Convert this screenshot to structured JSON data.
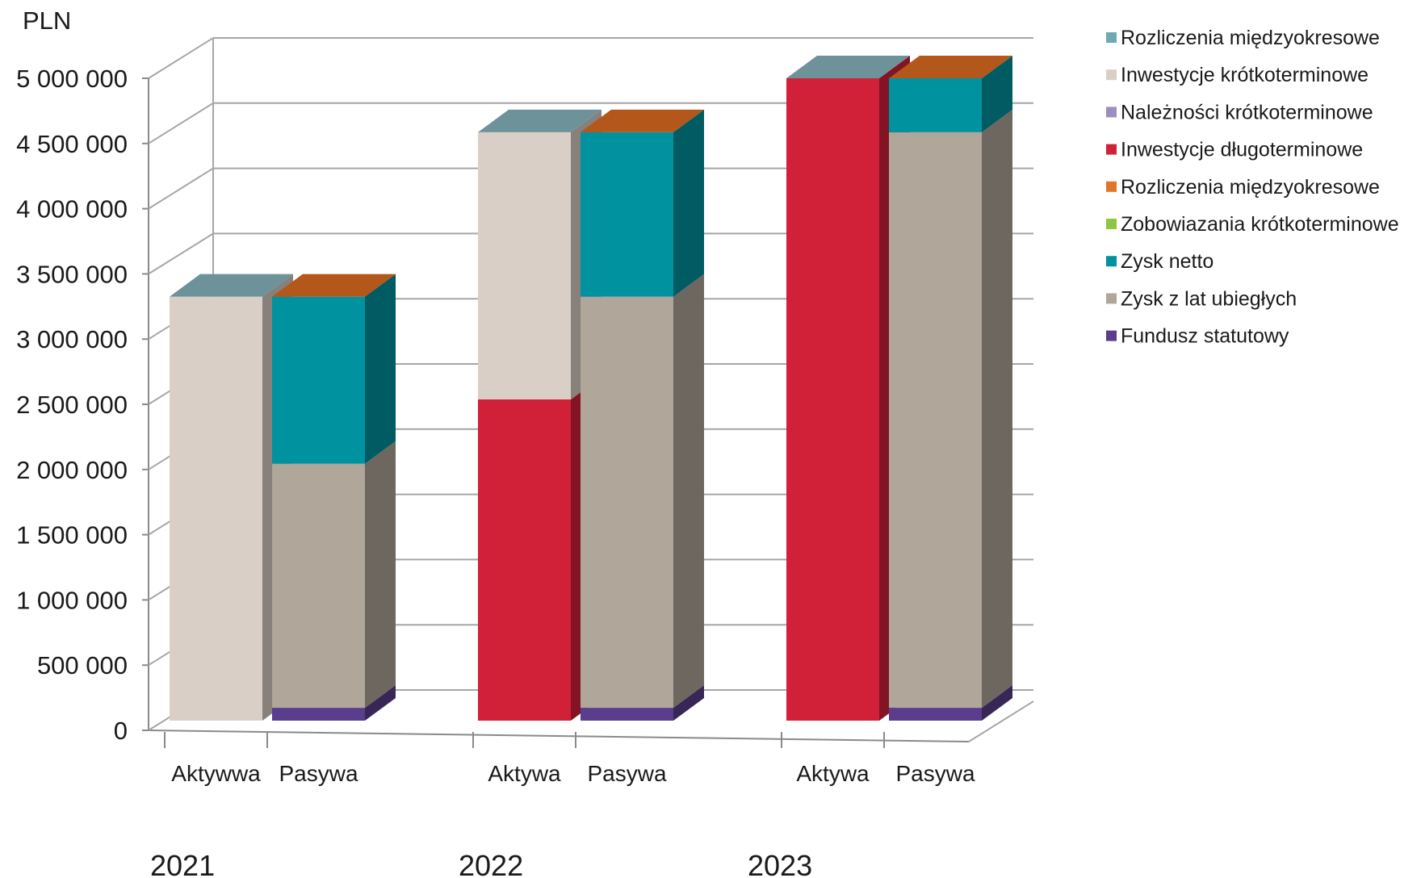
{
  "chart_data": {
    "type": "bar",
    "subtype": "stacked-3d",
    "ylabel": "PLN",
    "ylim": [
      0,
      5000000
    ],
    "yticks": [
      "0",
      "500 000",
      "1 000 000",
      "1 500 000",
      "2 000 000",
      "2 500 000",
      "3 000 000",
      "3 500 000",
      "4 000 000",
      "4 500 000",
      "5 000 000"
    ],
    "grid": true,
    "legend_position": "right",
    "groups": [
      {
        "year": "2021",
        "bars": [
          {
            "label": "Aktywwa",
            "stack": [
              {
                "series": "Inwestycje krótkoterminowe",
                "value": 3300000
              }
            ]
          },
          {
            "label": "Pasywa",
            "stack": [
              {
                "series": "Fundusz statutowy",
                "value": 100000
              },
              {
                "series": "Zysk z lat ubiegłych",
                "value": 1900000
              },
              {
                "series": "Zysk netto",
                "value": 1300000
              }
            ]
          }
        ]
      },
      {
        "year": "2022",
        "bars": [
          {
            "label": "Aktywa",
            "stack": [
              {
                "series": "Inwestycje długoterminowe",
                "value": 2500000
              },
              {
                "series": "Inwestycje krótkoterminowe",
                "value": 2080000
              }
            ]
          },
          {
            "label": "Pasywa",
            "stack": [
              {
                "series": "Fundusz statutowy",
                "value": 100000
              },
              {
                "series": "Zysk z lat ubiegłych",
                "value": 3200000
              },
              {
                "series": "Zysk netto",
                "value": 1280000
              }
            ]
          }
        ]
      },
      {
        "year": "2023",
        "bars": [
          {
            "label": "Aktywa",
            "stack": [
              {
                "series": "Inwestycje długoterminowe",
                "value": 5000000
              }
            ]
          },
          {
            "label": "Pasywa",
            "stack": [
              {
                "series": "Fundusz statutowy",
                "value": 100000
              },
              {
                "series": "Zysk z lat ubiegłych",
                "value": 4480000
              },
              {
                "series": "Zysk netto",
                "value": 420000
              }
            ]
          }
        ]
      }
    ],
    "legend": [
      {
        "name": "Rozliczenia międzyokresowe",
        "color": "#6fa9b4"
      },
      {
        "name": "Inwestycje krótkoterminowe",
        "color": "#d9cfc6"
      },
      {
        "name": "Należności krótkoterminowe",
        "color": "#9c8fc0"
      },
      {
        "name": "Inwestycje długoterminowe",
        "color": "#d12138"
      },
      {
        "name": "Rozliczenia międzyokresowe",
        "color": "#e07627"
      },
      {
        "name": "Zobowiazania krótkoterminowe",
        "color": "#8dc63f"
      },
      {
        "name": "Zysk netto",
        "color": "#00929f"
      },
      {
        "name": "Zysk z lat ubiegłych",
        "color": "#b0a699"
      },
      {
        "name": "Fundusz statutowy",
        "color": "#5a3d8c"
      }
    ],
    "top_colors": {
      "Aktywa": "#6d929a",
      "Pasywa": "#b4571a"
    }
  }
}
